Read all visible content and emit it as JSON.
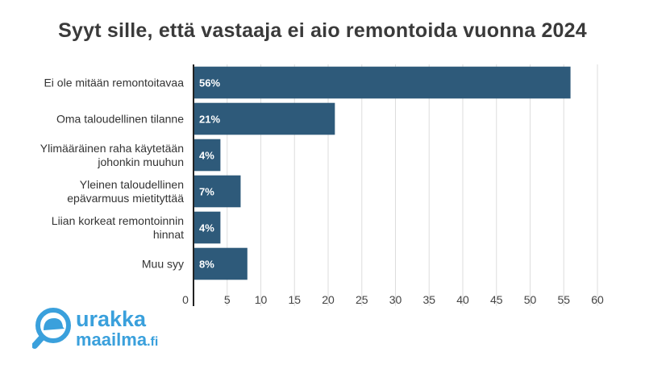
{
  "chart_data": {
    "type": "bar",
    "orientation": "horizontal",
    "title": "Syyt sille, että vastaaja ei aio remontoida vuonna 2024",
    "categories": [
      [
        "Ei ole mitään remontoitavaa"
      ],
      [
        "Oma taloudellinen tilanne"
      ],
      [
        "Ylimääräinen raha käytetään",
        "johonkin muuhun"
      ],
      [
        "Yleinen taloudellinen",
        "epävarmuus mietityttää"
      ],
      [
        "Liian korkeat remontoinnin",
        "hinnat"
      ],
      [
        "Muu syy"
      ]
    ],
    "values": [
      56,
      21,
      4,
      7,
      4,
      8
    ],
    "data_labels": [
      "56%",
      "21%",
      "4%",
      "7%",
      "4%",
      "8%"
    ],
    "xlim": [
      0,
      60
    ],
    "xticks": [
      0,
      5,
      10,
      15,
      20,
      25,
      30,
      35,
      40,
      45,
      50,
      55,
      60
    ],
    "grid": "vertical",
    "bar_color": "#2e5a7a",
    "grid_color": "#dddddd"
  },
  "logo": {
    "line1": "urakka",
    "line2": "maailma",
    "suffix": ".fi",
    "color": "#3aa0dc"
  }
}
